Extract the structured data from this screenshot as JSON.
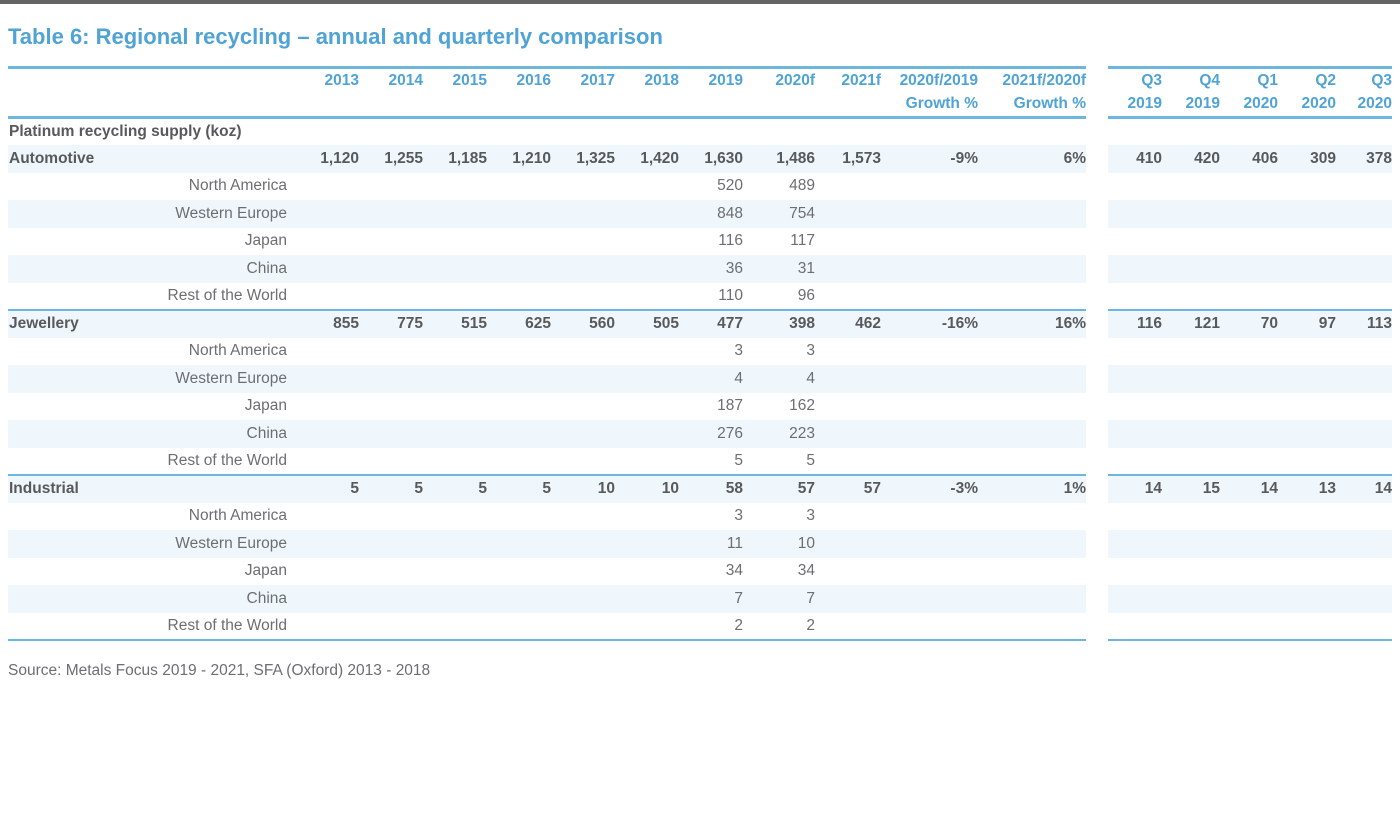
{
  "title": "Table 6: Regional recycling – annual and quarterly comparison",
  "source": "Source: Metals Focus 2019 - 2021, SFA (Oxford) 2013 - 2018",
  "colors": {
    "accent_blue": "#4FA3D5",
    "rule_blue": "#6CB6DF",
    "stripe": "#EFF7FC",
    "text_dark": "#58595B",
    "text_gray": "#6D6E71",
    "top_rule": "#636466"
  },
  "table": {
    "section_header": "Platinum recycling supply (koz)",
    "annual_columns": [
      "2013",
      "2014",
      "2015",
      "2016",
      "2017",
      "2018",
      "2019",
      "2020f",
      "2021f"
    ],
    "growth_columns": [
      {
        "line1": "2020f/2019",
        "line2": "Growth %"
      },
      {
        "line1": "2021f/2020f",
        "line2": "Growth %"
      }
    ],
    "quarter_columns": [
      {
        "line1": "Q3",
        "line2": "2019"
      },
      {
        "line1": "Q4",
        "line2": "2019"
      },
      {
        "line1": "Q1",
        "line2": "2020"
      },
      {
        "line1": "Q2",
        "line2": "2020"
      },
      {
        "line1": "Q3",
        "line2": "2020"
      }
    ],
    "groups": [
      {
        "label": "Automotive",
        "annual": [
          "1,120",
          "1,255",
          "1,185",
          "1,210",
          "1,325",
          "1,420",
          "1,630",
          "1,486",
          "1,573"
        ],
        "growth": [
          "-9%",
          "6%"
        ],
        "quarters": [
          "410",
          "420",
          "406",
          "309",
          "378"
        ],
        "regions": [
          {
            "label": "North America",
            "v2019": "520",
            "v2020f": "489"
          },
          {
            "label": "Western Europe",
            "v2019": "848",
            "v2020f": "754"
          },
          {
            "label": "Japan",
            "v2019": "116",
            "v2020f": "117"
          },
          {
            "label": "China",
            "v2019": "36",
            "v2020f": "31"
          },
          {
            "label": "Rest of the World",
            "v2019": "110",
            "v2020f": "96"
          }
        ]
      },
      {
        "label": "Jewellery",
        "annual": [
          "855",
          "775",
          "515",
          "625",
          "560",
          "505",
          "477",
          "398",
          "462"
        ],
        "growth": [
          "-16%",
          "16%"
        ],
        "quarters": [
          "116",
          "121",
          "70",
          "97",
          "113"
        ],
        "regions": [
          {
            "label": "North America",
            "v2019": "3",
            "v2020f": "3"
          },
          {
            "label": "Western Europe",
            "v2019": "4",
            "v2020f": "4"
          },
          {
            "label": "Japan",
            "v2019": "187",
            "v2020f": "162"
          },
          {
            "label": "China",
            "v2019": "276",
            "v2020f": "223"
          },
          {
            "label": "Rest of the World",
            "v2019": "5",
            "v2020f": "5"
          }
        ]
      },
      {
        "label": "Industrial",
        "annual": [
          "5",
          "5",
          "5",
          "5",
          "10",
          "10",
          "58",
          "57",
          "57"
        ],
        "growth": [
          "-3%",
          "1%"
        ],
        "quarters": [
          "14",
          "15",
          "14",
          "13",
          "14"
        ],
        "regions": [
          {
            "label": "North America",
            "v2019": "3",
            "v2020f": "3"
          },
          {
            "label": "Western Europe",
            "v2019": "11",
            "v2020f": "10"
          },
          {
            "label": "Japan",
            "v2019": "34",
            "v2020f": "34"
          },
          {
            "label": "China",
            "v2019": "7",
            "v2020f": "7"
          },
          {
            "label": "Rest of the World",
            "v2019": "2",
            "v2020f": "2"
          }
        ]
      }
    ]
  }
}
